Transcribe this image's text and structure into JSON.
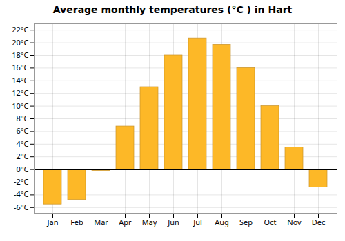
{
  "chart_data": {
    "type": "bar",
    "title": "Average monthly temperatures (°C ) in Hart",
    "categories": [
      "Jan",
      "Feb",
      "Mar",
      "Apr",
      "May",
      "Jun",
      "Jul",
      "Aug",
      "Sep",
      "Oct",
      "Nov",
      "Dec"
    ],
    "values": [
      -5.5,
      -4.8,
      -0.2,
      6.8,
      13.0,
      18.0,
      20.7,
      19.7,
      16.0,
      10.0,
      3.5,
      -2.8
    ],
    "color": "#FDB827",
    "ylim": [
      -7,
      23
    ],
    "yticks": [
      {
        "value": -6,
        "label": "-6°C"
      },
      {
        "value": -4,
        "label": "-4°C"
      },
      {
        "value": -2,
        "label": "-2°C"
      },
      {
        "value": 0,
        "label": "0°C"
      },
      {
        "value": 2,
        "label": "2°C"
      },
      {
        "value": 4,
        "label": "4°C"
      },
      {
        "value": 6,
        "label": "6°C"
      },
      {
        "value": 8,
        "label": "8°C"
      },
      {
        "value": 10,
        "label": "10°C"
      },
      {
        "value": 12,
        "label": "12°C"
      },
      {
        "value": 14,
        "label": "14°C"
      },
      {
        "value": 16,
        "label": "16°C"
      },
      {
        "value": 18,
        "label": "18°C"
      },
      {
        "value": 20,
        "label": "20°C"
      },
      {
        "value": 22,
        "label": "22°C"
      }
    ],
    "grid": true
  }
}
